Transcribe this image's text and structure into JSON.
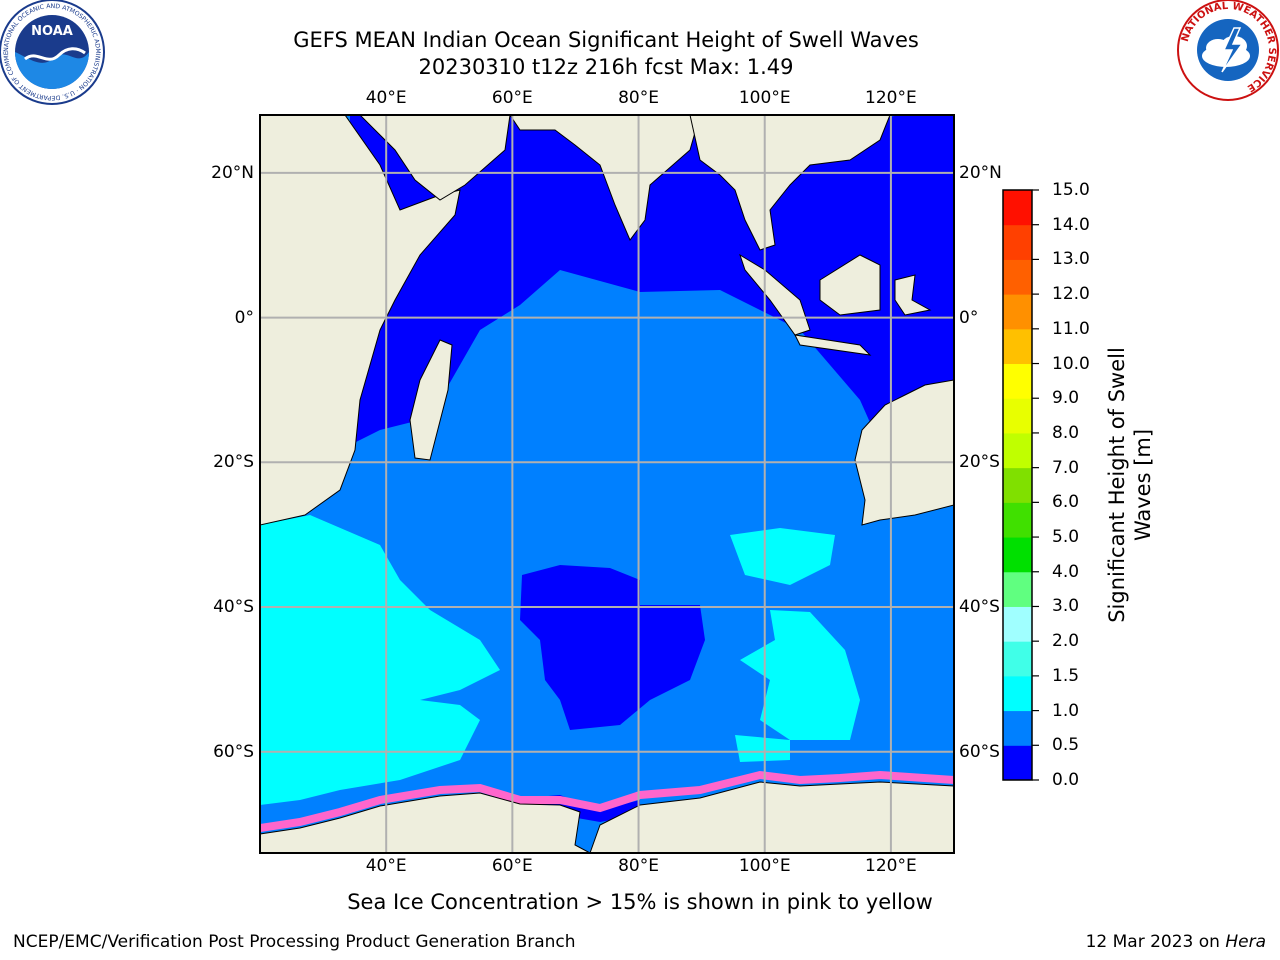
{
  "title": {
    "line1": "GEFS MEAN Indian Ocean Significant Height of Swell Waves",
    "line2": "20230310 t12z 216h fcst   Max: 1.49"
  },
  "map": {
    "region": "Indian Ocean",
    "lon_range": [
      20,
      130
    ],
    "lat_range": [
      -74,
      28
    ],
    "lon_ticks": [
      "40°E",
      "60°E",
      "80°E",
      "100°E",
      "120°E"
    ],
    "lat_ticks": [
      "20°N",
      "0°",
      "20°S",
      "40°S",
      "60°S"
    ],
    "colors": {
      "land": "#eeeedd",
      "gridline": "#b0b0b0",
      "coast": "#000000",
      "sea_ice": "#ff66cc"
    }
  },
  "colorbar": {
    "title": "Significant Height of Swell Waves [m]",
    "title_line1": "Significant Height of Swell",
    "title_line2": "Waves [m]",
    "tick_labels": [
      "0.0",
      "0.5",
      "1.0",
      "1.5",
      "2.0",
      "3.0",
      "4.0",
      "5.0",
      "6.0",
      "7.0",
      "8.0",
      "9.0",
      "10.0",
      "11.0",
      "12.0",
      "13.0",
      "14.0",
      "15.0"
    ],
    "colors": [
      "#0000ff",
      "#0080ff",
      "#00ffff",
      "#40ffe8",
      "#a0ffff",
      "#60ff80",
      "#00e000",
      "#40e000",
      "#80e000",
      "#c0ff00",
      "#e8ff00",
      "#ffff00",
      "#ffc000",
      "#ff9000",
      "#ff6000",
      "#ff4000",
      "#ff1000"
    ]
  },
  "note": "Sea Ice Concentration > 15% is shown in pink to yellow",
  "footer": {
    "left": "NCEP/EMC/Verification Post Processing Product Generation Branch",
    "right_date": "12 Mar 2023 on ",
    "right_host": "Hera"
  },
  "logos": {
    "noaa": {
      "text": "NOAA",
      "ring": "NATIONAL OCEANIC AND ATMOSPHERIC ADMINISTRATION · U.S. DEPARTMENT OF COMMERCE"
    },
    "nws": {
      "ring": "NATIONAL WEATHER SERVICE"
    }
  }
}
